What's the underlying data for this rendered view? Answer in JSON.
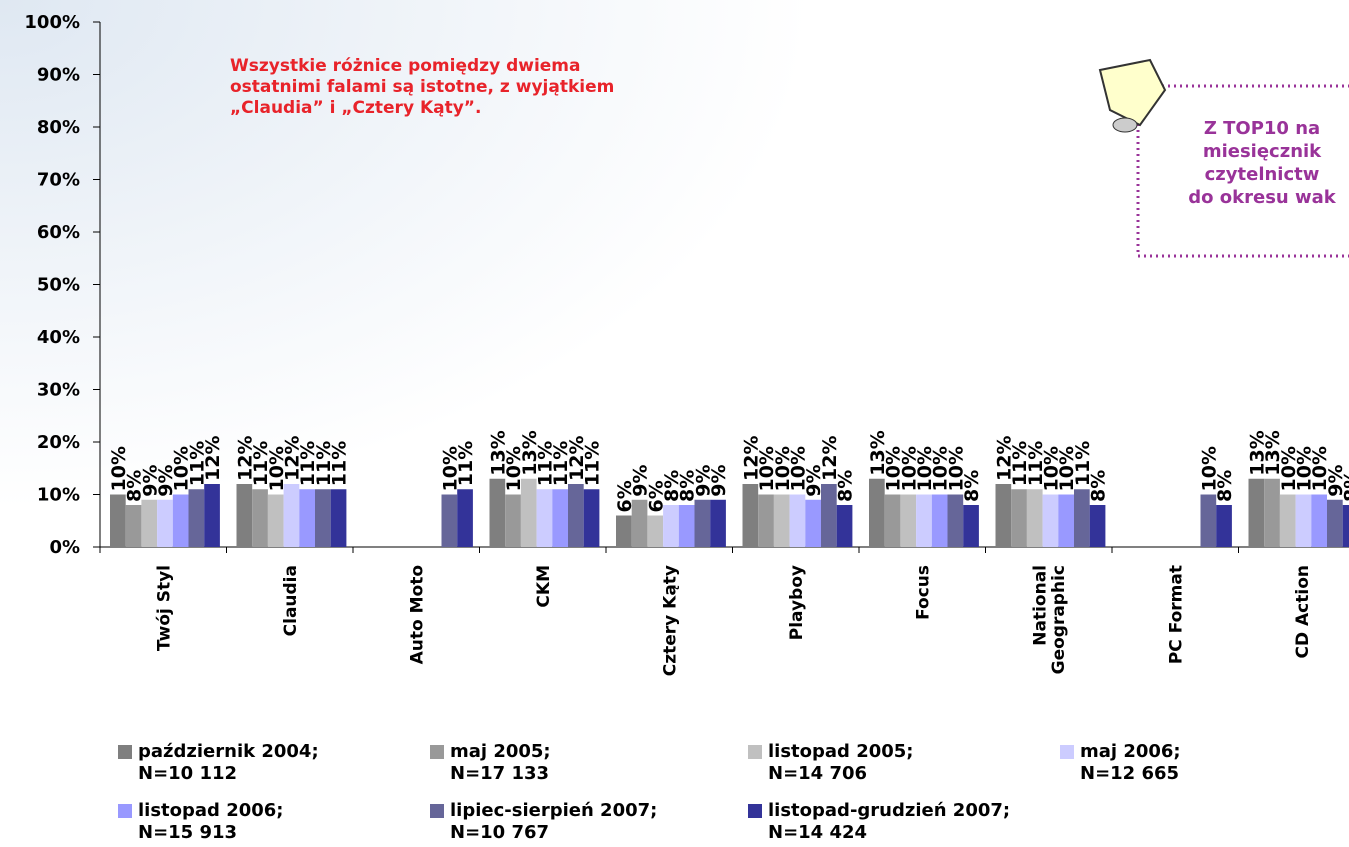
{
  "chart_data": {
    "type": "bar",
    "annotation": [
      "Wszystkie różnice pomiędzy dwiema",
      "ostatnimi falami są istotne, z wyjątkiem",
      "„Claudia” i „Cztery Kąty”."
    ],
    "callout": [
      "Z TOP10 na",
      "miesięcznik",
      "czytelnictw",
      "do okresu wak"
    ],
    "categories": [
      "Twój Styl",
      "Claudia",
      "Auto Moto",
      "CKM",
      "Cztery Kąty",
      "Playboy",
      "Focus",
      "National\nGeographic",
      "PC Format",
      "CD Action"
    ],
    "series": [
      {
        "name": "październik 2004;\nN=10 112",
        "color": "#7f7f7f",
        "values": [
          10,
          12,
          null,
          13,
          6,
          12,
          13,
          12,
          null,
          13
        ],
        "value_labels": [
          "10%",
          "12%",
          null,
          "13%",
          "6%",
          "12%",
          "13%",
          "12%",
          null,
          "13%"
        ]
      },
      {
        "name": "maj 2005;\nN=17 133",
        "color": "#999999",
        "values": [
          8,
          11,
          null,
          10,
          9,
          10,
          10,
          11,
          null,
          13
        ],
        "value_labels": [
          "8%",
          "11%",
          null,
          "10%",
          "9%",
          "10%",
          "10%",
          "11%",
          null,
          "13%"
        ]
      },
      {
        "name": "listopad 2005;\nN=14 706",
        "color": "#c0c0c0",
        "values": [
          9,
          10,
          null,
          13,
          6,
          10,
          10,
          11,
          null,
          10
        ],
        "value_labels": [
          "9%",
          "10%",
          null,
          "13%",
          "6%",
          "10%",
          "10%",
          "11%",
          null,
          "10%"
        ]
      },
      {
        "name": "maj 2006;\nN=12 665",
        "color": "#ccccff",
        "values": [
          9,
          12,
          null,
          11,
          8,
          10,
          10,
          10,
          null,
          10
        ],
        "value_labels": [
          "9%",
          "12%",
          null,
          "11%",
          "8%",
          "10%",
          "10%",
          "10%",
          null,
          "10%"
        ]
      },
      {
        "name": "listopad 2006;\nN=15 913",
        "color": "#9999ff",
        "values": [
          10,
          11,
          null,
          11,
          8,
          9,
          10,
          10,
          null,
          10
        ],
        "value_labels": [
          "10%",
          "11%",
          null,
          "11%",
          "8%",
          "9%",
          "10%",
          "10%",
          null,
          "10%"
        ]
      },
      {
        "name": "lipiec-sierpień 2007;\nN=10 767",
        "color": "#666699",
        "values": [
          11,
          11,
          10,
          12,
          9,
          12,
          10,
          11,
          10,
          9
        ],
        "value_labels": [
          "11%",
          "11%",
          "10%",
          "12%",
          "9%",
          "12%",
          "10%",
          "11%",
          "10%",
          "9%"
        ]
      },
      {
        "name": "listopad-grudzień 2007;\nN=14 424",
        "color": "#333399",
        "values": [
          12,
          11,
          11,
          11,
          9,
          8,
          8,
          8,
          8,
          8
        ],
        "value_labels": [
          "12%",
          "11%",
          "11%",
          "11%",
          "9%",
          "8%",
          "8%",
          "8%",
          "8%",
          "8%"
        ]
      }
    ],
    "ylim": [
      0,
      100
    ],
    "yticks": [
      {
        "value": 0,
        "label": "0%"
      },
      {
        "value": 10,
        "label": "10%"
      },
      {
        "value": 20,
        "label": "20%"
      },
      {
        "value": 30,
        "label": "30%"
      },
      {
        "value": 40,
        "label": "40%"
      },
      {
        "value": 50,
        "label": "50%"
      },
      {
        "value": 60,
        "label": "60%"
      },
      {
        "value": 70,
        "label": "70%"
      },
      {
        "value": 80,
        "label": "80%"
      },
      {
        "value": 90,
        "label": "90%"
      },
      {
        "value": 100,
        "label": "100%"
      }
    ]
  }
}
